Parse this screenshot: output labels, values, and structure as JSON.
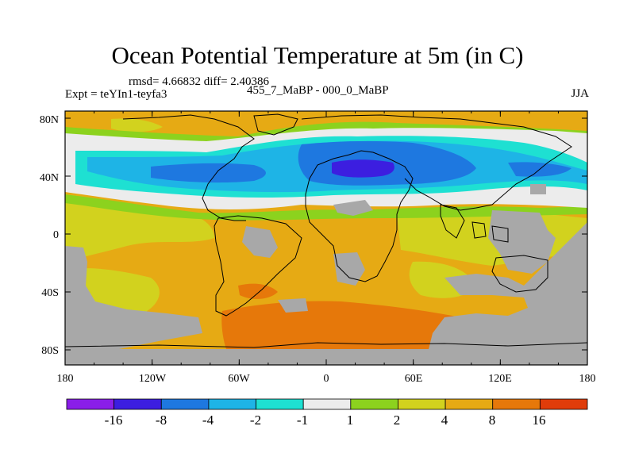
{
  "header": {
    "title": "Ocean Potential Temperature at 5m (in C)",
    "stats": "rmsd= 4.66832 diff= 2.40386",
    "experiment": "Expt = teYIn1-teyfa3",
    "subtitle": "455_7_MaBP - 000_0_MaBP",
    "season": "JJA"
  },
  "axes": {
    "x_ticks": [
      "180",
      "120W",
      "60W",
      "0",
      "60E",
      "120E",
      "180"
    ],
    "y_ticks": [
      "80N",
      "40N",
      "0",
      "40S",
      "80S"
    ]
  },
  "colorbar": {
    "labels": [
      "-16",
      "-8",
      "-4",
      "-2",
      "-1",
      "1",
      "2",
      "4",
      "8",
      "16"
    ],
    "colors": [
      "#8a1ee8",
      "#3c1ee0",
      "#1e78e0",
      "#1eb4e6",
      "#1ee0d2",
      "#ececec",
      "#8cd21e",
      "#d2d21e",
      "#e6aa14",
      "#e6780a",
      "#e03c0a"
    ]
  },
  "palette": {
    "land_mask": "#a8a8a8",
    "ocean_base": "#e6aa14"
  }
}
